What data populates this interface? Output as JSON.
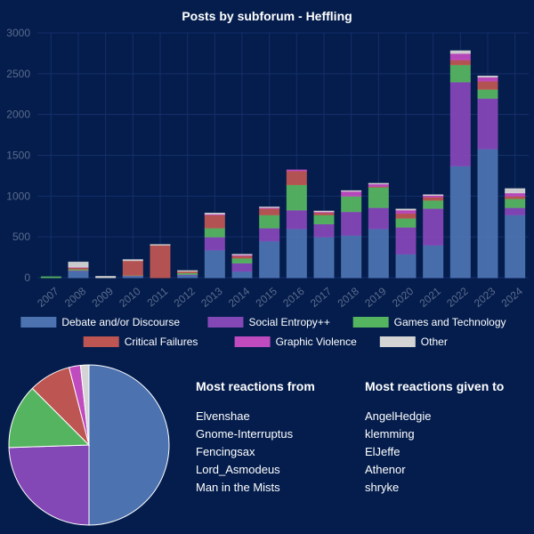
{
  "chart_data": [
    {
      "type": "bar",
      "stacked": true,
      "title": "Posts by subforum - Heffling",
      "categories": [
        "2007",
        "2008",
        "2009",
        "2010",
        "2011",
        "2012",
        "2013",
        "2014",
        "2015",
        "2016",
        "2017",
        "2018",
        "2019",
        "2020",
        "2021",
        "2022",
        "2023",
        "2024"
      ],
      "ylim": [
        0,
        3000
      ],
      "yticks": [
        0,
        500,
        1000,
        1500,
        2000,
        2500,
        3000
      ],
      "grid": true,
      "legend_position": "bottom",
      "series": [
        {
          "name": "Debate and/or Discourse",
          "color": "#4c72b0",
          "values": [
            0,
            80,
            0,
            20,
            0,
            30,
            340,
            80,
            450,
            600,
            500,
            520,
            600,
            290,
            400,
            1370,
            1580,
            770
          ]
        },
        {
          "name": "Social Entropy++",
          "color": "#8447b6",
          "values": [
            0,
            10,
            0,
            5,
            0,
            10,
            160,
            100,
            160,
            230,
            160,
            290,
            260,
            330,
            450,
            1030,
            620,
            90
          ]
        },
        {
          "name": "Games and Technology",
          "color": "#55b460",
          "values": [
            10,
            15,
            0,
            5,
            0,
            20,
            110,
            60,
            160,
            310,
            110,
            190,
            250,
            110,
            100,
            210,
            110,
            110
          ]
        },
        {
          "name": "Critical Failures",
          "color": "#bd5552",
          "values": [
            0,
            20,
            0,
            180,
            400,
            20,
            160,
            30,
            80,
            170,
            30,
            0,
            10,
            60,
            40,
            60,
            100,
            30
          ]
        },
        {
          "name": "Graphic Violence",
          "color": "#bf4bbf",
          "values": [
            0,
            5,
            0,
            0,
            0,
            0,
            10,
            10,
            10,
            10,
            10,
            60,
            30,
            40,
            20,
            80,
            50,
            40
          ]
        },
        {
          "name": "Other",
          "color": "#d4d4d4",
          "values": [
            0,
            60,
            15,
            10,
            5,
            5,
            10,
            5,
            5,
            0,
            5,
            5,
            5,
            10,
            5,
            30,
            10,
            50
          ]
        }
      ]
    },
    {
      "type": "pie",
      "slices": [
        {
          "series": "Debate and/or Discourse",
          "value": 50.0,
          "color": "#4c72b0"
        },
        {
          "series": "Social Entropy++",
          "value": 24.5,
          "color": "#8447b6"
        },
        {
          "series": "Games and Technology",
          "value": 13.0,
          "color": "#55b460"
        },
        {
          "series": "Critical Failures",
          "value": 8.5,
          "color": "#bd5552"
        },
        {
          "series": "Graphic Violence",
          "value": 2.3,
          "color": "#bf4bbf"
        },
        {
          "series": "Other",
          "value": 1.7,
          "color": "#d4d4d4"
        }
      ]
    }
  ],
  "reactions_from": {
    "heading": "Most reactions from",
    "names": [
      "Elvenshae",
      "Gnome-Interruptus",
      "Fencingsax",
      "Lord_Asmodeus",
      "Man in the Mists"
    ]
  },
  "reactions_to": {
    "heading": "Most reactions given to",
    "names": [
      "AngelHedgie",
      "klemming",
      "ElJeffe",
      "Athenor",
      "shryke"
    ]
  }
}
